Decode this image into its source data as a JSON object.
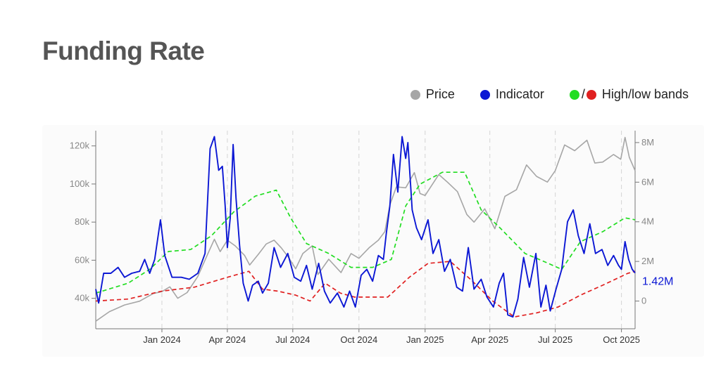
{
  "title": "Funding Rate",
  "legend": {
    "price_label": "Price",
    "indicator_label": "Indicator",
    "bands_label": "High/low bands",
    "bands_sep": "/"
  },
  "colors": {
    "price": "#a6a6a6",
    "indicator": "#0b17d4",
    "high_band": "#22dd22",
    "low_band": "#e02020"
  },
  "chart_data": {
    "type": "line",
    "x_ticks": [
      "Jan 2024",
      "Apr 2024",
      "Jul 2024",
      "Oct 2024",
      "Jan 2025",
      "Apr 2025",
      "Jul 2025",
      "Oct 2025"
    ],
    "x_tick_dates": [
      "2024-01-01",
      "2024-04-01",
      "2024-07-01",
      "2024-10-01",
      "2025-01-01",
      "2025-04-01",
      "2025-07-01",
      "2025-10-01"
    ],
    "xlim": [
      "2023-10-01",
      "2025-10-20"
    ],
    "left_axis": {
      "ticks": [
        "40k",
        "60k",
        "80k",
        "100k",
        "120k"
      ],
      "tick_values": [
        40000,
        60000,
        80000,
        100000,
        120000
      ],
      "ylim": [
        24000,
        128000
      ]
    },
    "right_axis": {
      "ticks": [
        "0",
        "2M",
        "4M",
        "6M",
        "8M"
      ],
      "tick_values": [
        0,
        2000000,
        4000000,
        6000000,
        8000000
      ],
      "ylim": [
        -1400000,
        8600000
      ]
    },
    "last_value_label": "1.42M",
    "last_value": 1420000,
    "series": [
      {
        "name": "Price",
        "axis": "left",
        "points": [
          [
            "2023-10-01",
            28000
          ],
          [
            "2023-10-20",
            33000
          ],
          [
            "2023-11-10",
            36500
          ],
          [
            "2023-12-01",
            38500
          ],
          [
            "2023-12-20",
            42500
          ],
          [
            "2024-01-01",
            43500
          ],
          [
            "2024-01-12",
            46000
          ],
          [
            "2024-01-23",
            40000
          ],
          [
            "2024-02-05",
            43000
          ],
          [
            "2024-02-20",
            51500
          ],
          [
            "2024-03-05",
            63500
          ],
          [
            "2024-03-14",
            71000
          ],
          [
            "2024-03-22",
            64500
          ],
          [
            "2024-04-01",
            70500
          ],
          [
            "2024-04-12",
            67500
          ],
          [
            "2024-04-25",
            62500
          ],
          [
            "2024-05-02",
            57500
          ],
          [
            "2024-05-15",
            63500
          ],
          [
            "2024-05-25",
            68500
          ],
          [
            "2024-06-05",
            70500
          ],
          [
            "2024-06-15",
            66500
          ],
          [
            "2024-06-25",
            61500
          ],
          [
            "2024-07-05",
            55500
          ],
          [
            "2024-07-15",
            63500
          ],
          [
            "2024-07-28",
            67500
          ],
          [
            "2024-08-05",
            52500
          ],
          [
            "2024-08-20",
            60500
          ],
          [
            "2024-09-06",
            53500
          ],
          [
            "2024-09-20",
            63500
          ],
          [
            "2024-10-01",
            61000
          ],
          [
            "2024-10-15",
            66500
          ],
          [
            "2024-10-28",
            70500
          ],
          [
            "2024-11-06",
            75000
          ],
          [
            "2024-11-13",
            89000
          ],
          [
            "2024-11-22",
            98500
          ],
          [
            "2024-12-05",
            98000
          ],
          [
            "2024-12-17",
            106000
          ],
          [
            "2024-12-25",
            95000
          ],
          [
            "2025-01-01",
            94000
          ],
          [
            "2025-01-20",
            105000
          ],
          [
            "2025-02-01",
            101000
          ],
          [
            "2025-02-15",
            96000
          ],
          [
            "2025-02-28",
            84000
          ],
          [
            "2025-03-10",
            80000
          ],
          [
            "2025-03-25",
            87000
          ],
          [
            "2025-04-08",
            76500
          ],
          [
            "2025-04-22",
            93500
          ],
          [
            "2025-05-08",
            97000
          ],
          [
            "2025-05-22",
            110000
          ],
          [
            "2025-06-05",
            104000
          ],
          [
            "2025-06-20",
            101000
          ],
          [
            "2025-07-01",
            107000
          ],
          [
            "2025-07-14",
            120500
          ],
          [
            "2025-07-28",
            117500
          ],
          [
            "2025-08-14",
            123000
          ],
          [
            "2025-08-25",
            111000
          ],
          [
            "2025-09-05",
            111500
          ],
          [
            "2025-09-20",
            115500
          ],
          [
            "2025-09-30",
            113000
          ],
          [
            "2025-10-06",
            124500
          ],
          [
            "2025-10-12",
            114000
          ],
          [
            "2025-10-20",
            107000
          ]
        ]
      },
      {
        "name": "Indicator",
        "axis": "right",
        "points": [
          [
            "2023-10-01",
            0.6
          ],
          [
            "2023-10-05",
            -0.1
          ],
          [
            "2023-10-12",
            1.4
          ],
          [
            "2023-10-22",
            1.4
          ],
          [
            "2023-11-01",
            1.7
          ],
          [
            "2023-11-10",
            1.2
          ],
          [
            "2023-11-20",
            1.4
          ],
          [
            "2023-12-01",
            1.5
          ],
          [
            "2023-12-08",
            2.1
          ],
          [
            "2023-12-15",
            1.4
          ],
          [
            "2023-12-22",
            2.1
          ],
          [
            "2023-12-30",
            4.1
          ],
          [
            "2024-01-05",
            2.3
          ],
          [
            "2024-01-15",
            1.2
          ],
          [
            "2024-01-28",
            1.2
          ],
          [
            "2024-02-08",
            1.1
          ],
          [
            "2024-02-20",
            1.4
          ],
          [
            "2024-03-01",
            2.4
          ],
          [
            "2024-03-08",
            7.7
          ],
          [
            "2024-03-14",
            8.3
          ],
          [
            "2024-03-20",
            6.6
          ],
          [
            "2024-03-25",
            6.8
          ],
          [
            "2024-03-29",
            4.8
          ],
          [
            "2024-04-01",
            2.7
          ],
          [
            "2024-04-05",
            4.2
          ],
          [
            "2024-04-09",
            7.9
          ],
          [
            "2024-04-13",
            5.2
          ],
          [
            "2024-04-18",
            2.8
          ],
          [
            "2024-04-23",
            0.9
          ],
          [
            "2024-04-30",
            0.0
          ],
          [
            "2024-05-06",
            0.8
          ],
          [
            "2024-05-14",
            1.0
          ],
          [
            "2024-05-20",
            0.4
          ],
          [
            "2024-05-28",
            0.9
          ],
          [
            "2024-06-05",
            2.7
          ],
          [
            "2024-06-14",
            1.7
          ],
          [
            "2024-06-24",
            2.4
          ],
          [
            "2024-07-03",
            1.2
          ],
          [
            "2024-07-12",
            1.0
          ],
          [
            "2024-07-20",
            1.8
          ],
          [
            "2024-07-28",
            0.6
          ],
          [
            "2024-08-06",
            1.9
          ],
          [
            "2024-08-14",
            0.5
          ],
          [
            "2024-08-22",
            -0.1
          ],
          [
            "2024-09-01",
            0.4
          ],
          [
            "2024-09-10",
            -0.3
          ],
          [
            "2024-09-18",
            0.5
          ],
          [
            "2024-09-26",
            -0.3
          ],
          [
            "2024-10-04",
            1.3
          ],
          [
            "2024-10-12",
            1.6
          ],
          [
            "2024-10-20",
            1.0
          ],
          [
            "2024-10-28",
            2.3
          ],
          [
            "2024-11-04",
            2.1
          ],
          [
            "2024-11-08",
            3.4
          ],
          [
            "2024-11-13",
            4.8
          ],
          [
            "2024-11-18",
            7.4
          ],
          [
            "2024-11-24",
            5.5
          ],
          [
            "2024-11-30",
            8.3
          ],
          [
            "2024-12-05",
            7.2
          ],
          [
            "2024-12-08",
            8.0
          ],
          [
            "2024-12-14",
            4.6
          ],
          [
            "2024-12-20",
            3.7
          ],
          [
            "2024-12-27",
            3.1
          ],
          [
            "2025-01-05",
            4.1
          ],
          [
            "2025-01-12",
            2.4
          ],
          [
            "2025-01-20",
            3.1
          ],
          [
            "2025-01-28",
            1.5
          ],
          [
            "2025-02-05",
            2.1
          ],
          [
            "2025-02-14",
            0.7
          ],
          [
            "2025-02-22",
            0.5
          ],
          [
            "2025-03-02",
            2.7
          ],
          [
            "2025-03-10",
            0.6
          ],
          [
            "2025-03-20",
            1.1
          ],
          [
            "2025-03-28",
            0.2
          ],
          [
            "2025-04-06",
            -0.3
          ],
          [
            "2025-04-14",
            0.9
          ],
          [
            "2025-04-20",
            1.4
          ],
          [
            "2025-04-26",
            -0.7
          ],
          [
            "2025-05-03",
            -0.8
          ],
          [
            "2025-05-10",
            0.1
          ],
          [
            "2025-05-18",
            2.2
          ],
          [
            "2025-05-26",
            0.7
          ],
          [
            "2025-06-04",
            2.4
          ],
          [
            "2025-06-11",
            -0.3
          ],
          [
            "2025-06-18",
            0.8
          ],
          [
            "2025-06-24",
            -0.5
          ],
          [
            "2025-07-02",
            0.6
          ],
          [
            "2025-07-10",
            1.6
          ],
          [
            "2025-07-18",
            4.0
          ],
          [
            "2025-07-26",
            4.6
          ],
          [
            "2025-08-02",
            3.3
          ],
          [
            "2025-08-10",
            2.4
          ],
          [
            "2025-08-18",
            3.9
          ],
          [
            "2025-08-26",
            2.4
          ],
          [
            "2025-09-04",
            2.6
          ],
          [
            "2025-09-12",
            1.8
          ],
          [
            "2025-09-20",
            2.3
          ],
          [
            "2025-09-27",
            1.8
          ],
          [
            "2025-10-01",
            1.6
          ],
          [
            "2025-10-06",
            3.0
          ],
          [
            "2025-10-11",
            2.1
          ],
          [
            "2025-10-16",
            1.6
          ],
          [
            "2025-10-20",
            1.42
          ]
        ]
      },
      {
        "name": "High band",
        "axis": "right",
        "points": [
          [
            "2023-10-01",
            0.4
          ],
          [
            "2023-11-15",
            0.9
          ],
          [
            "2023-12-15",
            1.6
          ],
          [
            "2024-01-10",
            2.5
          ],
          [
            "2024-02-10",
            2.6
          ],
          [
            "2024-03-10",
            3.3
          ],
          [
            "2024-04-10",
            4.5
          ],
          [
            "2024-05-10",
            5.3
          ],
          [
            "2024-06-08",
            5.6
          ],
          [
            "2024-06-28",
            4.2
          ],
          [
            "2024-07-20",
            2.9
          ],
          [
            "2024-08-20",
            2.4
          ],
          [
            "2024-09-20",
            1.7
          ],
          [
            "2024-10-20",
            1.7
          ],
          [
            "2024-11-15",
            2.1
          ],
          [
            "2024-12-05",
            4.8
          ],
          [
            "2024-12-25",
            5.9
          ],
          [
            "2025-01-25",
            6.5
          ],
          [
            "2025-02-25",
            6.5
          ],
          [
            "2025-03-20",
            4.6
          ],
          [
            "2025-04-15",
            3.7
          ],
          [
            "2025-05-20",
            2.4
          ],
          [
            "2025-06-15",
            2.0
          ],
          [
            "2025-07-10",
            1.6
          ],
          [
            "2025-08-05",
            3.0
          ],
          [
            "2025-09-05",
            3.5
          ],
          [
            "2025-10-06",
            4.2
          ],
          [
            "2025-10-20",
            4.1
          ]
        ]
      },
      {
        "name": "Low band",
        "axis": "right",
        "points": [
          [
            "2023-10-01",
            0.0
          ],
          [
            "2023-11-15",
            0.1
          ],
          [
            "2024-01-01",
            0.5
          ],
          [
            "2024-02-15",
            0.7
          ],
          [
            "2024-04-01",
            1.2
          ],
          [
            "2024-05-01",
            1.5
          ],
          [
            "2024-05-20",
            0.6
          ],
          [
            "2024-06-10",
            0.5
          ],
          [
            "2024-07-05",
            0.3
          ],
          [
            "2024-07-25",
            0.0
          ],
          [
            "2024-08-15",
            0.9
          ],
          [
            "2024-09-05",
            0.4
          ],
          [
            "2024-09-25",
            0.2
          ],
          [
            "2024-11-10",
            0.2
          ],
          [
            "2024-12-10",
            1.2
          ],
          [
            "2025-01-05",
            1.9
          ],
          [
            "2025-02-05",
            2.0
          ],
          [
            "2025-03-05",
            1.1
          ],
          [
            "2025-04-05",
            0.0
          ],
          [
            "2025-05-05",
            -0.8
          ],
          [
            "2025-06-05",
            -0.6
          ],
          [
            "2025-07-05",
            -0.3
          ],
          [
            "2025-08-05",
            0.3
          ],
          [
            "2025-09-05",
            0.8
          ],
          [
            "2025-10-10",
            1.4
          ],
          [
            "2025-10-20",
            1.5
          ]
        ]
      }
    ],
    "y_units_right": "M",
    "grid": "vertical dashed at x ticks"
  }
}
